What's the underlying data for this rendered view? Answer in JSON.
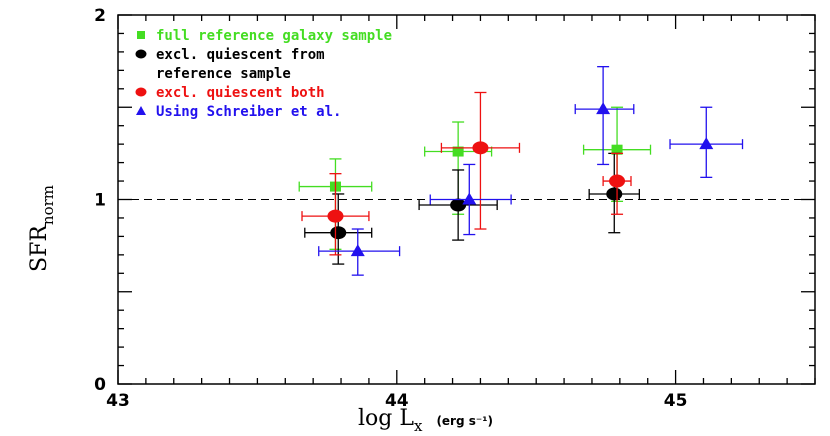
{
  "chart_data": {
    "type": "scatter",
    "title": "",
    "xlabel": "log L",
    "xlabel_sub": "x",
    "xlabel_units": "(erg s⁻¹)",
    "ylabel": "SFR",
    "ylabel_sub": "norm",
    "xlim": [
      43,
      45.5
    ],
    "ylim": [
      0,
      2
    ],
    "xticks": [
      43,
      44,
      45
    ],
    "xtick_labels": [
      "43",
      "44",
      "45"
    ],
    "yticks": [
      0,
      1,
      2
    ],
    "ytick_labels": [
      "0",
      "1",
      "2"
    ],
    "reference_line": {
      "y": 1,
      "style": "dashed"
    },
    "grid": false,
    "legend_position": "top-left",
    "series": [
      {
        "name": "full reference galaxy sample",
        "legend_lines": [
          "full reference galaxy sample"
        ],
        "color": "#44dd22",
        "marker": "square",
        "points": [
          {
            "x": 43.78,
            "y": 1.07,
            "xerr": [
              0.13,
              0.13
            ],
            "yerr": [
              0.34,
              0.15
            ]
          },
          {
            "x": 44.22,
            "y": 1.26,
            "xerr": [
              0.12,
              0.12
            ],
            "yerr": [
              0.34,
              0.16
            ]
          },
          {
            "x": 44.79,
            "y": 1.27,
            "xerr": [
              0.12,
              0.12
            ],
            "yerr": [
              0.28,
              0.23
            ]
          }
        ]
      },
      {
        "name": "excl. quiescent from reference sample",
        "legend_lines": [
          "excl. quiescent from",
          "reference sample"
        ],
        "color": "#000000",
        "marker": "circle",
        "points": [
          {
            "x": 43.79,
            "y": 0.82,
            "xerr": [
              0.12,
              0.12
            ],
            "yerr": [
              0.17,
              0.21
            ]
          },
          {
            "x": 44.22,
            "y": 0.97,
            "xerr": [
              0.14,
              0.14
            ],
            "yerr": [
              0.19,
              0.19
            ]
          },
          {
            "x": 44.78,
            "y": 1.03,
            "xerr": [
              0.09,
              0.09
            ],
            "yerr": [
              0.21,
              0.22
            ]
          }
        ]
      },
      {
        "name": "excl. quiescent both",
        "legend_lines": [
          "excl. quiescent both"
        ],
        "color": "#ee1111",
        "marker": "circle",
        "points": [
          {
            "x": 43.78,
            "y": 0.91,
            "xerr": [
              0.12,
              0.12
            ],
            "yerr": [
              0.21,
              0.23
            ]
          },
          {
            "x": 44.3,
            "y": 1.28,
            "xerr": [
              0.14,
              0.14
            ],
            "yerr": [
              0.44,
              0.3
            ]
          },
          {
            "x": 44.79,
            "y": 1.1,
            "xerr": [
              0.05,
              0.05
            ],
            "yerr": [
              0.18,
              0.15
            ]
          }
        ]
      },
      {
        "name": "Using Schreiber et al.",
        "legend_lines": [
          "Using Schreiber et al."
        ],
        "color": "#2211ee",
        "marker": "triangle",
        "points": [
          {
            "x": 43.86,
            "y": 0.72,
            "xerr": [
              0.14,
              0.15
            ],
            "yerr": [
              0.13,
              0.12
            ]
          },
          {
            "x": 44.26,
            "y": 1.0,
            "xerr": [
              0.14,
              0.15
            ],
            "yerr": [
              0.19,
              0.19
            ]
          },
          {
            "x": 44.74,
            "y": 1.49,
            "xerr": [
              0.1,
              0.11
            ],
            "yerr": [
              0.3,
              0.23
            ]
          },
          {
            "x": 45.11,
            "y": 1.3,
            "xerr": [
              0.13,
              0.13
            ],
            "yerr": [
              0.18,
              0.2
            ]
          }
        ]
      }
    ]
  }
}
